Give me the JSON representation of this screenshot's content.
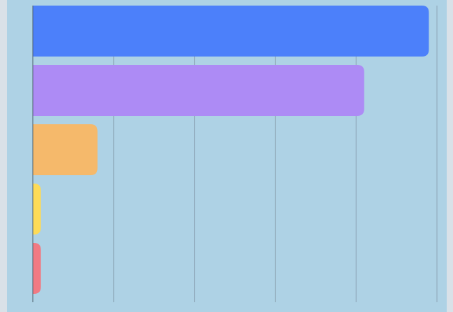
{
  "chart_data": {
    "type": "bar",
    "orientation": "horizontal",
    "categories": [
      "",
      "",
      "",
      "",
      ""
    ],
    "values": [
      98,
      82,
      16,
      2,
      2
    ],
    "xlim": [
      0,
      100
    ],
    "grid": true,
    "colors": [
      "#4c80fa",
      "#ad8bf5",
      "#f5b96b",
      "#fddb57",
      "#f17a83"
    ],
    "grid_color": "#8ea7b8",
    "axis_color": "#4b5e6a",
    "background": "#aed2e5"
  }
}
